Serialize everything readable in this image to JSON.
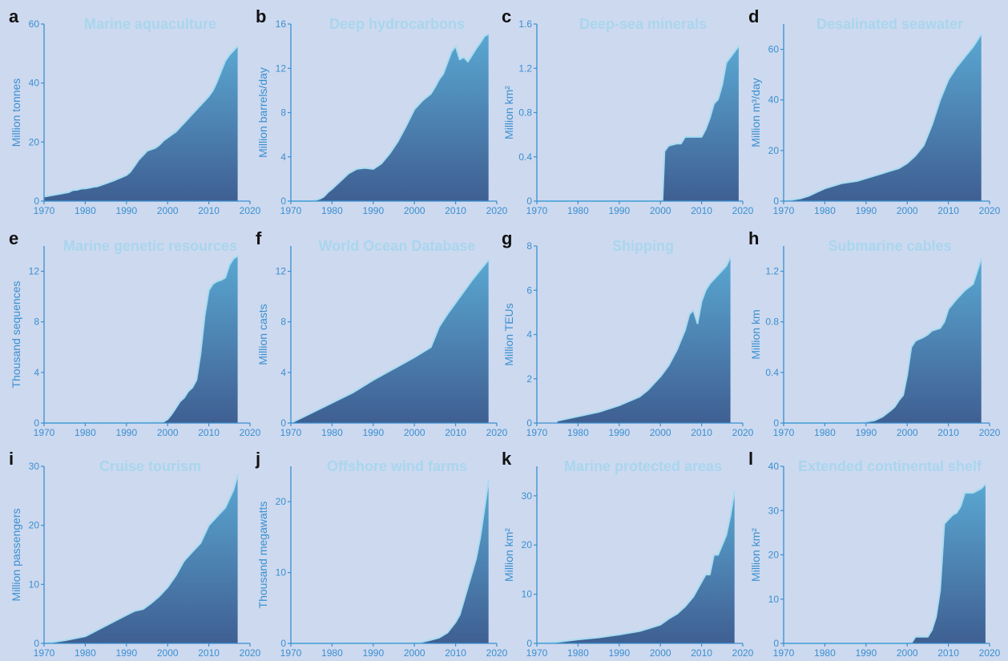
{
  "colors": {
    "background": "#cdd9ef",
    "axis": "#3a8fd0",
    "title": "#a9d6ee",
    "area_top": "#5aa7d2",
    "area_bottom": "#3f5f92",
    "edge": "#a7dcf0"
  },
  "chart_data": [
    {
      "letter": "a",
      "title": "Marine aquaculture",
      "ylabel": "Million tonnes",
      "type": "area",
      "xlim": [
        1970,
        2020
      ],
      "ylim": [
        0,
        60
      ],
      "yticks": [
        0,
        20,
        40,
        60
      ],
      "xticks": [
        1970,
        1980,
        1990,
        2000,
        2010,
        2020
      ],
      "x": [
        1970,
        1972,
        1974,
        1976,
        1977,
        1978,
        1979,
        1980,
        1981,
        1982,
        1983,
        1984,
        1985,
        1986,
        1987,
        1988,
        1989,
        1990,
        1991,
        1992,
        1993,
        1994,
        1995,
        1996,
        1997,
        1998,
        1999,
        2000,
        2001,
        2002,
        2003,
        2004,
        2005,
        2006,
        2007,
        2008,
        2009,
        2010,
        2011,
        2012,
        2013,
        2014,
        2015,
        2016,
        2017
      ],
      "y": [
        1.5,
        2,
        2.5,
        3,
        3.7,
        3.8,
        4.2,
        4.3,
        4.5,
        4.8,
        5,
        5.5,
        6,
        6.5,
        7,
        7.6,
        8.2,
        8.8,
        10,
        12,
        14,
        15.5,
        17,
        17.5,
        18,
        19,
        20.5,
        21.5,
        22.5,
        23.5,
        25,
        26.5,
        28,
        29.5,
        31,
        32.5,
        34,
        35.5,
        37.5,
        40.5,
        44,
        47.5,
        49.5,
        51,
        52.5
      ]
    },
    {
      "letter": "b",
      "title": "Deep hydrocarbons",
      "ylabel": "Million barrels/day",
      "type": "area",
      "xlim": [
        1970,
        2020
      ],
      "ylim": [
        0,
        16
      ],
      "yticks": [
        0,
        4,
        8,
        12,
        16
      ],
      "xticks": [
        1970,
        1980,
        1990,
        2000,
        2010,
        2020
      ],
      "x": [
        1970,
        1975,
        1977,
        1978,
        1979,
        1980,
        1982,
        1984,
        1986,
        1988,
        1990,
        1992,
        1994,
        1996,
        1998,
        2000,
        2002,
        2004,
        2005,
        2006,
        2007,
        2008,
        2009,
        2010,
        2011,
        2012,
        2013,
        2014,
        2015,
        2016,
        2017,
        2018
      ],
      "y": [
        0,
        0,
        0.2,
        0.4,
        0.8,
        1.1,
        1.8,
        2.5,
        2.9,
        3,
        2.9,
        3.4,
        4.3,
        5.4,
        6.8,
        8.3,
        9.1,
        9.7,
        10.3,
        11,
        11.5,
        12.5,
        13.5,
        14,
        12.8,
        13,
        12.6,
        13.2,
        13.8,
        14.3,
        14.9,
        15.1
      ]
    },
    {
      "letter": "c",
      "title": "Deep-sea minerals",
      "ylabel": "Million km²",
      "type": "area",
      "xlim": [
        1970,
        2020
      ],
      "ylim": [
        0,
        1.6
      ],
      "yticks": [
        0,
        0.4,
        0.8,
        1.2,
        1.6
      ],
      "xticks": [
        1970,
        1980,
        1990,
        2000,
        2010,
        2020
      ],
      "x": [
        1970,
        2000.5,
        2001,
        2002,
        2004,
        2005,
        2006,
        2009,
        2010,
        2011,
        2012,
        2013,
        2014,
        2015,
        2016,
        2017,
        2018,
        2019
      ],
      "y": [
        0,
        0,
        0.45,
        0.5,
        0.52,
        0.52,
        0.58,
        0.58,
        0.58,
        0.65,
        0.75,
        0.88,
        0.92,
        1.05,
        1.25,
        1.3,
        1.35,
        1.4
      ]
    },
    {
      "letter": "d",
      "title": "Desalinated seawater",
      "ylabel": "Million m³/day",
      "type": "area",
      "xlim": [
        1970,
        2020
      ],
      "ylim": [
        0,
        70
      ],
      "yticks": [
        0,
        20,
        40,
        60
      ],
      "xticks": [
        1970,
        1980,
        1990,
        2000,
        2010,
        2020
      ],
      "x": [
        1970,
        1972,
        1974,
        1976,
        1978,
        1980,
        1982,
        1984,
        1986,
        1988,
        1990,
        1992,
        1994,
        1996,
        1998,
        2000,
        2002,
        2004,
        2006,
        2008,
        2010,
        2012,
        2014,
        2016,
        2018
      ],
      "y": [
        0,
        0.5,
        1,
        2,
        3.5,
        5,
        6,
        7,
        7.5,
        8,
        9,
        10,
        11,
        12,
        13,
        15,
        18,
        22,
        30,
        40,
        48,
        53,
        57,
        61,
        66
      ]
    },
    {
      "letter": "e",
      "title": "Marine genetic resources",
      "ylabel": "Thousand sequences",
      "type": "area",
      "xlim": [
        1970,
        2020
      ],
      "ylim": [
        0,
        14
      ],
      "yticks": [
        0,
        4,
        8,
        12
      ],
      "xticks": [
        1970,
        1980,
        1990,
        2000,
        2010,
        2020
      ],
      "x": [
        1970,
        1988,
        1995,
        1999,
        2000,
        2001,
        2002,
        2003,
        2004,
        2005,
        2006,
        2007,
        2008,
        2009,
        2010,
        2011,
        2012,
        2013,
        2014,
        2015,
        2016,
        2017
      ],
      "y": [
        0,
        0.02,
        0.05,
        0.1,
        0.3,
        0.7,
        1.2,
        1.7,
        2,
        2.5,
        2.8,
        3.4,
        5.5,
        8.5,
        10.5,
        11,
        11.2,
        11.3,
        11.5,
        12.5,
        13,
        13.2
      ]
    },
    {
      "letter": "f",
      "title": "World Ocean Database",
      "ylabel": "Million casts",
      "type": "area",
      "xlim": [
        1970,
        2020
      ],
      "ylim": [
        0,
        14
      ],
      "yticks": [
        0,
        4,
        8,
        12
      ],
      "xticks": [
        1970,
        1980,
        1990,
        2000,
        2010,
        2020
      ],
      "x": [
        1970,
        1975,
        1980,
        1985,
        1990,
        1995,
        2000,
        2004,
        2006,
        2008,
        2010,
        2012,
        2014,
        2016,
        2018
      ],
      "y": [
        0,
        0.8,
        1.6,
        2.4,
        3.4,
        4.3,
        5.2,
        6,
        7.6,
        8.6,
        9.5,
        10.4,
        11.3,
        12.1,
        12.9
      ]
    },
    {
      "letter": "g",
      "title": "Shipping",
      "ylabel": "Million TEUs",
      "type": "area",
      "xlim": [
        1970,
        2020
      ],
      "ylim": [
        0,
        8
      ],
      "yticks": [
        0,
        2,
        4,
        6,
        8
      ],
      "xticks": [
        1970,
        1980,
        1990,
        2000,
        2010,
        2020
      ],
      "x": [
        1975,
        1980,
        1985,
        1990,
        1995,
        1997,
        2000,
        2002,
        2004,
        2006,
        2007,
        2008,
        2009,
        2010,
        2011,
        2012,
        2014,
        2016,
        2017
      ],
      "y": [
        0.1,
        0.3,
        0.5,
        0.8,
        1.2,
        1.5,
        2.1,
        2.6,
        3.3,
        4.2,
        4.9,
        5.1,
        4.5,
        5.5,
        6,
        6.3,
        6.7,
        7.1,
        7.5
      ]
    },
    {
      "letter": "h",
      "title": "Submarine cables",
      "ylabel": "Million km",
      "type": "area",
      "xlim": [
        1970,
        2020
      ],
      "ylim": [
        0,
        1.4
      ],
      "yticks": [
        0,
        0.4,
        0.8,
        1.2
      ],
      "xticks": [
        1970,
        1980,
        1990,
        2000,
        2010,
        2020
      ],
      "x": [
        1970,
        1988,
        1990,
        1992,
        1994,
        1996,
        1997,
        1998,
        1999,
        2000,
        2001,
        2002,
        2004,
        2005,
        2006,
        2008,
        2009,
        2010,
        2012,
        2014,
        2016,
        2017,
        2018
      ],
      "y": [
        0,
        0,
        0.01,
        0.02,
        0.05,
        0.1,
        0.13,
        0.18,
        0.22,
        0.38,
        0.6,
        0.65,
        0.68,
        0.7,
        0.73,
        0.75,
        0.8,
        0.9,
        0.98,
        1.05,
        1.1,
        1.2,
        1.3
      ]
    },
    {
      "letter": "i",
      "title": "Cruise tourism",
      "ylabel": "Million passengers",
      "type": "area",
      "xlim": [
        1970,
        2020
      ],
      "ylim": [
        0,
        30
      ],
      "yticks": [
        0,
        10,
        20,
        30
      ],
      "xticks": [
        1970,
        1980,
        1990,
        2000,
        2010,
        2020
      ],
      "x": [
        1970,
        1975,
        1980,
        1985,
        1990,
        1992,
        1994,
        1996,
        1998,
        2000,
        2002,
        2004,
        2006,
        2008,
        2010,
        2012,
        2014,
        2016,
        2017
      ],
      "y": [
        0,
        0.5,
        1.2,
        3,
        4.8,
        5.5,
        5.8,
        6.8,
        8,
        9.5,
        11.5,
        14,
        15.5,
        17,
        20,
        21.5,
        23,
        26,
        28.5
      ]
    },
    {
      "letter": "j",
      "title": "Offshore wind farms",
      "ylabel": "Thousand megawatts",
      "type": "area",
      "xlim": [
        1970,
        2020
      ],
      "ylim": [
        0,
        25
      ],
      "yticks": [
        0,
        10,
        20
      ],
      "xticks": [
        1970,
        1980,
        1990,
        2000,
        2010,
        2020
      ],
      "x": [
        1970,
        1990,
        2000,
        2002,
        2004,
        2006,
        2008,
        2010,
        2011,
        2012,
        2013,
        2014,
        2015,
        2016,
        2017,
        2018
      ],
      "y": [
        0,
        0.02,
        0.05,
        0.2,
        0.5,
        0.8,
        1.5,
        3,
        4,
        6,
        8,
        10,
        12,
        15,
        19,
        23
      ]
    },
    {
      "letter": "k",
      "title": "Marine protected areas",
      "ylabel": "Million km²",
      "type": "area",
      "xlim": [
        1970,
        2020
      ],
      "ylim": [
        0,
        36
      ],
      "yticks": [
        0,
        10,
        20,
        30
      ],
      "xticks": [
        1970,
        1980,
        1990,
        2000,
        2010,
        2020
      ],
      "x": [
        1970,
        1975,
        1980,
        1985,
        1990,
        1995,
        1997,
        2000,
        2002,
        2004,
        2006,
        2008,
        2010,
        2011,
        2012,
        2013,
        2014,
        2015,
        2016,
        2017,
        2018
      ],
      "y": [
        0,
        0.3,
        0.8,
        1.2,
        1.8,
        2.5,
        3,
        3.8,
        5,
        6,
        7.5,
        9.5,
        12.5,
        14,
        14,
        18,
        18,
        20,
        22,
        26,
        31
      ]
    },
    {
      "letter": "l",
      "title": "Extended continental shelf",
      "ylabel": "Million km²",
      "type": "area",
      "xlim": [
        1970,
        2020
      ],
      "ylim": [
        0,
        40
      ],
      "yticks": [
        0,
        10,
        20,
        30,
        40
      ],
      "xticks": [
        1970,
        1980,
        1990,
        2000,
        2010,
        2020
      ],
      "x": [
        1970,
        2001,
        2002,
        2005,
        2006,
        2007,
        2008,
        2009,
        2010,
        2011,
        2012,
        2013,
        2014,
        2015,
        2016,
        2017,
        2018,
        2019
      ],
      "y": [
        0,
        0,
        1.5,
        1.5,
        3,
        6,
        12,
        27,
        28,
        29,
        29.5,
        31,
        34,
        34,
        34,
        34.5,
        35,
        36
      ]
    }
  ]
}
